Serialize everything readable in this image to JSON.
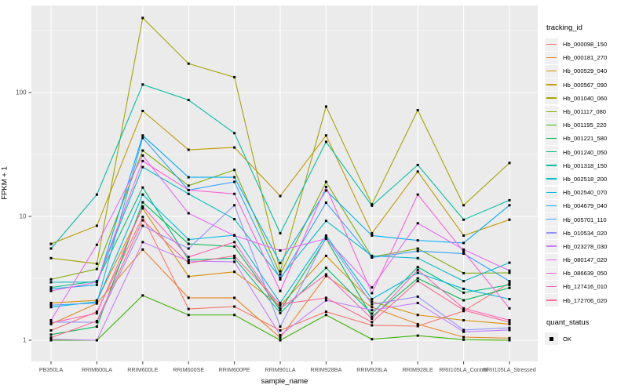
{
  "chart_data": {
    "type": "line",
    "title": "",
    "xlabel": "sample_name",
    "ylabel": "FPKM + 1",
    "y_scale": "log10",
    "ylim": [
      0.7,
      500
    ],
    "grid": true,
    "legend_position": "right",
    "y_ticks": [
      {
        "label": "1",
        "value": 1
      },
      {
        "label": "10",
        "value": 10
      },
      {
        "label": "100",
        "value": 100
      }
    ],
    "y_minor_values": [
      3.162,
      31.62,
      316.2
    ],
    "categories": [
      "PB350LA",
      "RRIM600LA",
      "RRIM600LE",
      "RRIM600SE",
      "RRIM600PE",
      "RRIM901LA",
      "RRIM928BA",
      "RRIM928LA",
      "RRIM928LE",
      "RRII105LA_Control",
      "RRII105LA_Stressed"
    ],
    "series": [
      {
        "name": "Hb_000098_150",
        "color": "#F8766D",
        "values": [
          1.2,
          1.7,
          9.9,
          1.79,
          1.87,
          1.2,
          1.7,
          1.32,
          1.3,
          1.72,
          2.9
        ]
      },
      {
        "name": "Hb_000181_270",
        "color": "#E88526",
        "values": [
          1.35,
          1.98,
          5.4,
          2.2,
          2.2,
          1.05,
          3.3,
          1.85,
          1.35,
          1.06,
          1.04
        ]
      },
      {
        "name": "Hb_000529_040",
        "color": "#D89000",
        "values": [
          2.0,
          2.1,
          11.6,
          3.27,
          3.57,
          1.9,
          4.8,
          2.05,
          1.6,
          1.45,
          1.35
        ]
      },
      {
        "name": "Hb_000567_090",
        "color": "#C09B00",
        "values": [
          6.0,
          8.4,
          71.0,
          34.5,
          36.0,
          14.6,
          45.0,
          7.3,
          23.0,
          7.0,
          9.4
        ]
      },
      {
        "name": "Hb_001040_060",
        "color": "#A3A500",
        "values": [
          4.6,
          4.15,
          400.0,
          171.0,
          133.0,
          3.6,
          77.0,
          12.5,
          72.0,
          12.3,
          27.0
        ]
      },
      {
        "name": "Hb_001117_080",
        "color": "#7CAE00",
        "values": [
          3.1,
          3.76,
          34.0,
          17.7,
          23.7,
          3.4,
          19.0,
          4.7,
          5.5,
          3.48,
          3.5
        ]
      },
      {
        "name": "Hb_001195_220",
        "color": "#39B600",
        "values": [
          1.0,
          1.0,
          2.3,
          1.6,
          1.6,
          1.0,
          1.6,
          1.02,
          1.09,
          1.01,
          1.0
        ]
      },
      {
        "name": "Hb_001221_580",
        "color": "#00BB4E",
        "values": [
          1.11,
          1.29,
          13.0,
          6.0,
          5.7,
          1.75,
          6.6,
          1.55,
          3.16,
          2.1,
          2.65
        ]
      },
      {
        "name": "Hb_001240_050",
        "color": "#00BF7D",
        "values": [
          2.67,
          3.0,
          17.1,
          4.45,
          4.6,
          1.66,
          3.84,
          1.64,
          3.9,
          2.42,
          2.8
        ]
      },
      {
        "name": "Hb_001318_150",
        "color": "#00C1A3",
        "values": [
          5.5,
          15.0,
          116.0,
          87.0,
          47.0,
          7.3,
          40.0,
          12.2,
          26.0,
          9.4,
          13.5
        ]
      },
      {
        "name": "Hb_002518_200",
        "color": "#00BFC4",
        "values": [
          2.94,
          2.95,
          25.0,
          15.2,
          9.5,
          3.2,
          9.2,
          4.8,
          4.6,
          3.0,
          4.23
        ]
      },
      {
        "name": "Hb_002540_070",
        "color": "#00BAE0",
        "values": [
          1.85,
          2.05,
          15.0,
          6.5,
          7.05,
          2.0,
          7.0,
          2.15,
          3.5,
          2.6,
          2.15
        ]
      },
      {
        "name": "Hb_004679_040",
        "color": "#00B0F6",
        "values": [
          2.6,
          2.8,
          45.0,
          20.7,
          20.7,
          4.2,
          16.2,
          7.0,
          6.4,
          6.1,
          12.3
        ]
      },
      {
        "name": "Hb_005701_110",
        "color": "#35A2FF",
        "values": [
          1.92,
          2.0,
          43.0,
          16.3,
          19.0,
          3.1,
          12.9,
          4.65,
          5.25,
          5.0,
          3.0
        ]
      },
      {
        "name": "Hb_010534_020",
        "color": "#9590FF",
        "values": [
          1.4,
          1.4,
          8.4,
          5.5,
          12.3,
          1.29,
          6.8,
          1.95,
          2.25,
          1.21,
          1.26
        ]
      },
      {
        "name": "Hb_023278_030",
        "color": "#C77CFF",
        "values": [
          1.02,
          1.0,
          6.2,
          4.35,
          4.3,
          1.1,
          2.1,
          1.75,
          2.0,
          1.17,
          1.21
        ]
      },
      {
        "name": "Hb_080147_020",
        "color": "#E76BF3",
        "values": [
          1.45,
          5.9,
          31.0,
          10.6,
          7.0,
          5.3,
          6.6,
          2.67,
          8.8,
          5.4,
          3.65
        ]
      },
      {
        "name": "Hb_086639_050",
        "color": "#FA62DB",
        "values": [
          2.5,
          2.95,
          28.0,
          16.3,
          15.2,
          2.5,
          17.3,
          2.4,
          15.0,
          5.2,
          1.81
        ]
      },
      {
        "name": "Hb_127416_010",
        "color": "#FF62BC",
        "values": [
          1.38,
          1.65,
          12.0,
          4.7,
          6.2,
          1.8,
          3.4,
          1.49,
          3.7,
          1.81,
          1.45
        ]
      },
      {
        "name": "Hb_172706_020",
        "color": "#FF6A98",
        "values": [
          1.05,
          1.43,
          9.3,
          4.2,
          4.8,
          1.95,
          2.2,
          1.4,
          3.0,
          1.75,
          1.4
        ]
      }
    ],
    "legend": {
      "tracking_title": "tracking_id",
      "quant_title": "quant_status",
      "quant_items": [
        {
          "label": "OK",
          "symbol": "black-square"
        }
      ]
    },
    "style": {
      "panel_bg": "#EBEBEB",
      "grid_color": "#FFFFFF",
      "point_color": "#000000",
      "tick_color": "#333333",
      "tick_label_color": "#4D4D4D",
      "legend_key_bg": "#F0F0F0"
    }
  }
}
